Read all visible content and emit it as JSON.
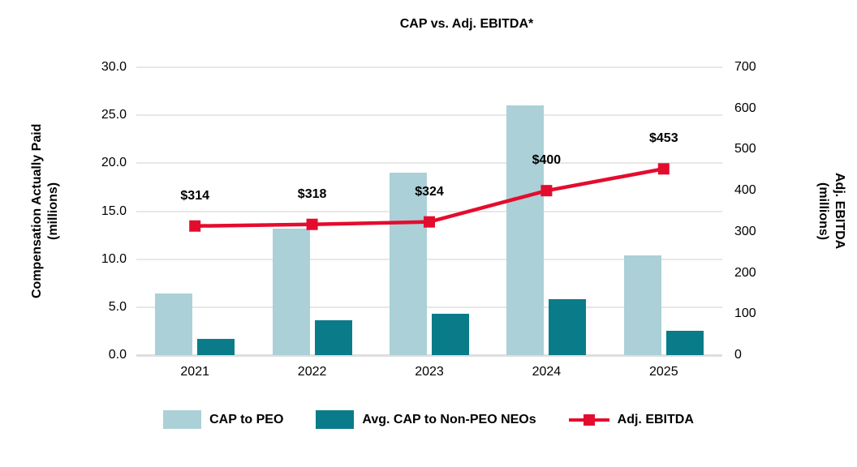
{
  "chart_data": {
    "type": "combo-bar-line",
    "title": "CAP vs. Adj. EBITDA*",
    "categories": [
      "2021",
      "2022",
      "2023",
      "2024",
      "2025"
    ],
    "series": [
      {
        "name": "CAP to PEO",
        "type": "bar",
        "axis": "left",
        "color": "#abd0d7",
        "values": [
          6.4,
          13.2,
          19.0,
          26.0,
          10.4
        ]
      },
      {
        "name": "Avg. CAP to Non-PEO NEOs",
        "type": "bar",
        "axis": "left",
        "color": "#0a7c89",
        "values": [
          1.7,
          3.6,
          4.3,
          5.8,
          2.5
        ]
      },
      {
        "name": "Adj. EBITDA",
        "type": "line",
        "axis": "right",
        "color": "#e40c2e",
        "values": [
          314,
          318,
          324,
          400,
          453
        ],
        "point_labels": [
          "$314",
          "$318",
          "$324",
          "$400",
          "$453"
        ]
      }
    ],
    "axes": {
      "left": {
        "title_line1": "Compensation Actually Paid",
        "title_line2": "(millions)",
        "min": 0,
        "max": 30,
        "ticks": [
          "30.0",
          "25.0",
          "20.0",
          "15.0",
          "10.0",
          "5.0",
          "0.0"
        ]
      },
      "right": {
        "title_line1": "Adj. EBITDA",
        "title_line2": "(millions)",
        "min": 0,
        "max": 700,
        "ticks": [
          "700",
          "600",
          "500",
          "400",
          "300",
          "200",
          "100",
          "0"
        ]
      }
    },
    "grid": true,
    "legend_position": "bottom",
    "background_color": "#ffffff",
    "gridline_color": "#e7e7e7"
  }
}
